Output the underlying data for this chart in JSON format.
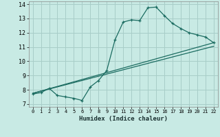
{
  "xlabel": "Humidex (Indice chaleur)",
  "xlim": [
    -0.5,
    22.5
  ],
  "ylim": [
    6.8,
    14.2
  ],
  "xticks": [
    0,
    1,
    2,
    3,
    4,
    5,
    6,
    7,
    8,
    9,
    10,
    11,
    12,
    13,
    14,
    15,
    16,
    17,
    18,
    19,
    20,
    21,
    22
  ],
  "yticks": [
    7,
    8,
    9,
    10,
    11,
    12,
    13,
    14
  ],
  "bg_color": "#c8eae4",
  "grid_color": "#a8cdc8",
  "line_color": "#1a6b60",
  "line1_x": [
    0,
    1,
    2,
    3,
    4,
    5,
    6,
    7,
    8,
    9,
    10,
    11,
    12,
    13,
    14,
    15,
    16,
    17,
    18,
    19,
    20,
    21,
    22
  ],
  "line1_y": [
    7.7,
    7.8,
    8.1,
    7.6,
    7.5,
    7.4,
    7.25,
    8.2,
    8.65,
    9.35,
    11.5,
    12.75,
    12.9,
    12.85,
    13.75,
    13.8,
    13.2,
    12.65,
    12.3,
    12.0,
    11.85,
    11.7,
    11.3
  ],
  "line2_x": [
    0,
    22
  ],
  "line2_y": [
    7.75,
    11.3
  ],
  "line3_x": [
    0,
    22
  ],
  "line3_y": [
    7.75,
    11.05
  ]
}
